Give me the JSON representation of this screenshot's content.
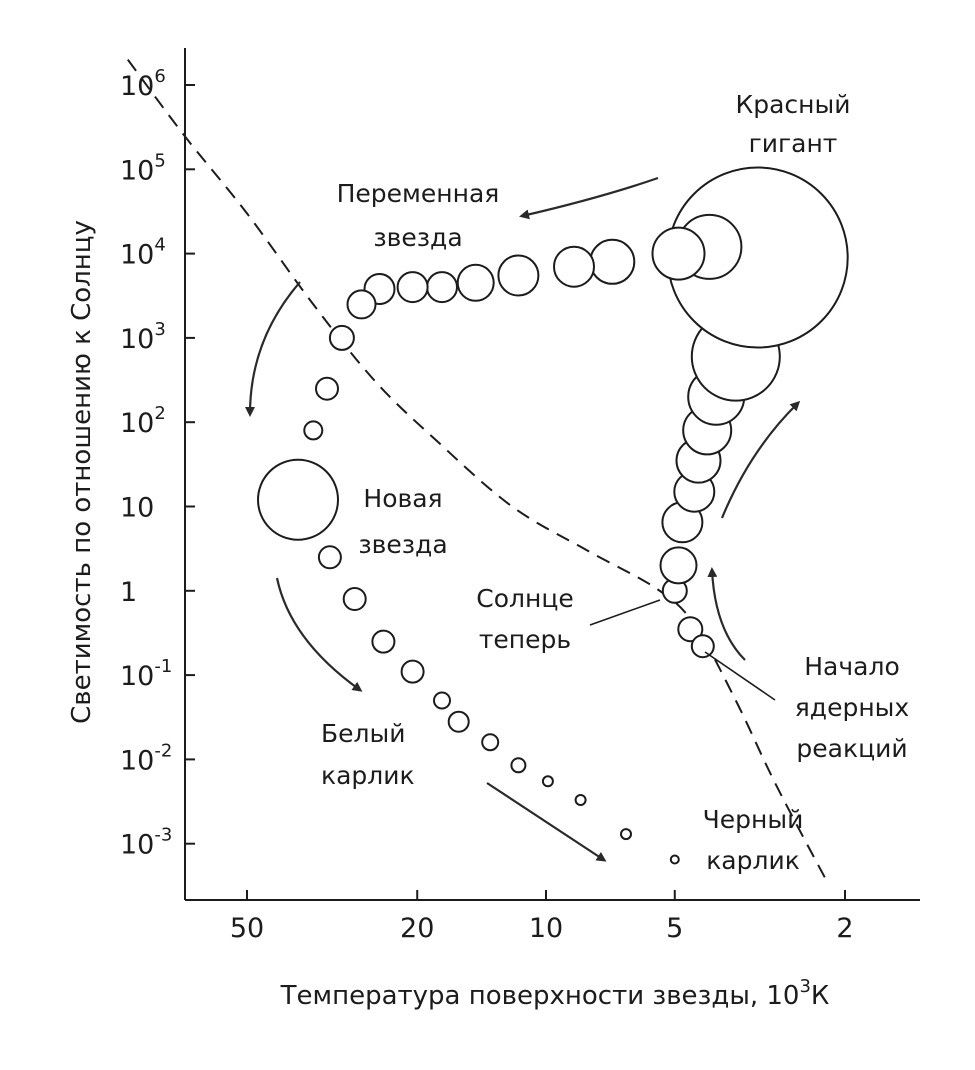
{
  "chart_data": {
    "type": "scatter",
    "x_axis": {
      "label": "Температура поверхности звезды, 10",
      "label_exponent": "3",
      "label_unit": "К",
      "scale": "log",
      "reversed": true,
      "ticks": [
        {
          "value": 50,
          "label": "50"
        },
        {
          "value": 20,
          "label": "20"
        },
        {
          "value": 10,
          "label": "10"
        },
        {
          "value": 5,
          "label": "5"
        },
        {
          "value": 2,
          "label": "2"
        }
      ]
    },
    "y_axis": {
      "label": "Светимость по отношению к Солнцу",
      "scale": "log",
      "ticks": [
        {
          "value": 1000000,
          "base": "10",
          "exp": "6"
        },
        {
          "value": 100000,
          "base": "10",
          "exp": "5"
        },
        {
          "value": 10000,
          "base": "10",
          "exp": "4"
        },
        {
          "value": 1000,
          "base": "10",
          "exp": "3"
        },
        {
          "value": 100,
          "base": "10",
          "exp": "2"
        },
        {
          "value": 10,
          "base": "10",
          "exp": ""
        },
        {
          "value": 1,
          "base": "1",
          "exp": ""
        },
        {
          "value": 0.1,
          "base": "10",
          "exp": "-1"
        },
        {
          "value": 0.01,
          "base": "10",
          "exp": "-2"
        },
        {
          "value": 0.001,
          "base": "10",
          "exp": "-3"
        }
      ]
    },
    "series": [
      {
        "points": [
          {
            "t": 5.0,
            "l": 1.0,
            "r": 0.6
          },
          {
            "t": 4.6,
            "l": 0.35,
            "r": 0.6
          },
          {
            "t": 4.3,
            "l": 0.22,
            "r": 0.55
          },
          {
            "t": 4.9,
            "l": 2.0,
            "r": 0.9
          },
          {
            "t": 4.8,
            "l": 6.5,
            "r": 1.0
          },
          {
            "t": 4.5,
            "l": 15,
            "r": 1.0
          },
          {
            "t": 4.4,
            "l": 35,
            "r": 1.1
          },
          {
            "t": 4.2,
            "l": 80,
            "r": 1.2
          },
          {
            "t": 4.0,
            "l": 200,
            "r": 1.4
          },
          {
            "t": 3.6,
            "l": 600,
            "r": 2.2
          },
          {
            "t": 3.2,
            "l": 9000,
            "r": 4.5
          },
          {
            "t": 4.15,
            "l": 12000,
            "r": 1.6
          },
          {
            "t": 4.9,
            "l": 10000,
            "r": 1.3
          },
          {
            "t": 7.0,
            "l": 8000,
            "r": 1.1
          },
          {
            "t": 8.6,
            "l": 7000,
            "r": 1.0
          },
          {
            "t": 11.6,
            "l": 5500,
            "r": 1.0
          },
          {
            "t": 14.6,
            "l": 4500,
            "r": 0.9
          },
          {
            "t": 17.5,
            "l": 4000,
            "r": 0.75
          },
          {
            "t": 20.5,
            "l": 4000,
            "r": 0.75
          },
          {
            "t": 24.5,
            "l": 3800,
            "r": 0.75
          },
          {
            "t": 27.0,
            "l": 2500,
            "r": 0.7
          },
          {
            "t": 30.0,
            "l": 1000,
            "r": 0.6
          },
          {
            "t": 32.5,
            "l": 250,
            "r": 0.55
          },
          {
            "t": 35.0,
            "l": 80,
            "r": 0.45
          },
          {
            "t": 38.0,
            "l": 12,
            "r": 2.0
          },
          {
            "t": 32.0,
            "l": 2.5,
            "r": 0.55
          },
          {
            "t": 28.0,
            "l": 0.8,
            "r": 0.55
          },
          {
            "t": 24.0,
            "l": 0.25,
            "r": 0.55
          },
          {
            "t": 20.5,
            "l": 0.11,
            "r": 0.55
          },
          {
            "t": 17.5,
            "l": 0.05,
            "r": 0.4
          },
          {
            "t": 16.0,
            "l": 0.028,
            "r": 0.5
          },
          {
            "t": 13.5,
            "l": 0.016,
            "r": 0.4
          },
          {
            "t": 11.6,
            "l": 0.0085,
            "r": 0.35
          },
          {
            "t": 9.9,
            "l": 0.0055,
            "r": 0.25
          },
          {
            "t": 8.3,
            "l": 0.0033,
            "r": 0.25
          },
          {
            "t": 6.5,
            "l": 0.0013,
            "r": 0.25
          },
          {
            "t": 5.0,
            "l": 0.00065,
            "r": 0.2
          }
        ]
      }
    ],
    "main_sequence_line": [
      {
        "t": 95,
        "l": 2000000
      },
      {
        "t": 70,
        "l": 250000
      },
      {
        "t": 50,
        "l": 30000
      },
      {
        "t": 35,
        "l": 2500
      },
      {
        "t": 25,
        "l": 300
      },
      {
        "t": 18,
        "l": 60
      },
      {
        "t": 12,
        "l": 10
      },
      {
        "t": 8,
        "l": 3
      },
      {
        "t": 5.5,
        "l": 1.05
      },
      {
        "t": 4.5,
        "l": 0.4
      },
      {
        "t": 3.6,
        "l": 0.05
      },
      {
        "t": 2.9,
        "l": 0.005
      },
      {
        "t": 2.2,
        "l": 0.00035
      }
    ],
    "annotations": [
      {
        "id": "red-giant",
        "lines": [
          "Красный",
          "гигант"
        ]
      },
      {
        "id": "variable-star",
        "lines": [
          "Переменная",
          "звезда"
        ]
      },
      {
        "id": "new-star",
        "lines": [
          "Новая",
          "звезда"
        ]
      },
      {
        "id": "sun-now",
        "lines": [
          "Солнце",
          "теперь"
        ]
      },
      {
        "id": "nuclear-start",
        "lines": [
          "Начало",
          "ядерных",
          "реакций"
        ]
      },
      {
        "id": "white-dwarf",
        "lines": [
          "Белый",
          "карлик"
        ]
      },
      {
        "id": "black-dwarf",
        "lines": [
          "Черный",
          "карлик"
        ]
      }
    ],
    "xlim": [
      70,
      1.6
    ],
    "ylim": [
      0.00025,
      2500000
    ]
  }
}
